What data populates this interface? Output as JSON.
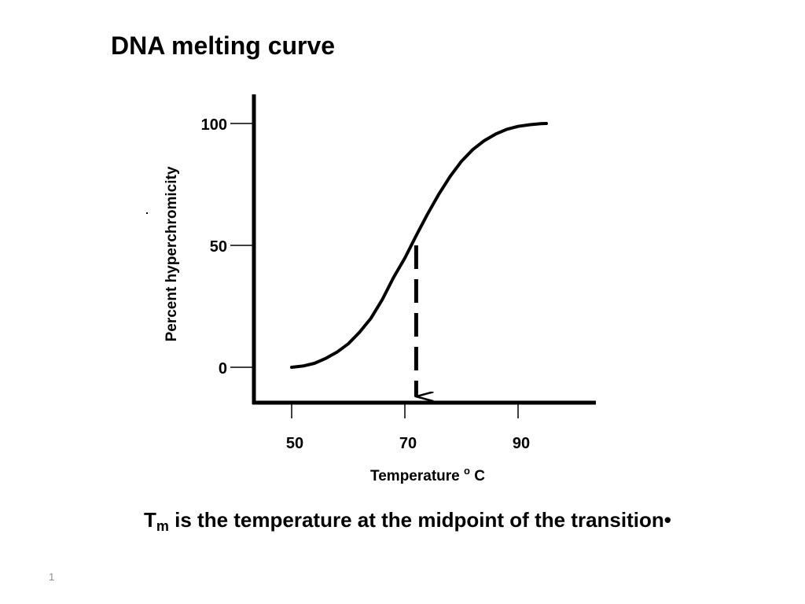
{
  "slide": {
    "title": "DNA melting curve",
    "caption_main": "T",
    "caption_sub": "m",
    "caption_rest": " is the temperature at the midpoint of the transition",
    "caption_bullet": "•",
    "slide_number": "1"
  },
  "chart_data": {
    "type": "line",
    "title": "",
    "xlabel": "Temperature",
    "xlabel_unit_sup": "o",
    "xlabel_unit": "C",
    "ylabel": "Percent hyperchromicity",
    "x_ticks": [
      50,
      70,
      90
    ],
    "y_ticks": [
      0,
      50,
      100
    ],
    "xlim": [
      44,
      105
    ],
    "ylim": [
      -13,
      112
    ],
    "grid": false,
    "series": [
      {
        "x": [
          50,
          52,
          54,
          56,
          58,
          60,
          62,
          64,
          66,
          68,
          70,
          72,
          74,
          76,
          78,
          80,
          82,
          84,
          86,
          88,
          90,
          92,
          94,
          95
        ],
        "y": [
          0,
          0.5,
          1.6,
          3.6,
          6.2,
          9.6,
          14.4,
          20.1,
          27.7,
          36.8,
          44.8,
          54.0,
          62.8,
          71.0,
          78.3,
          84.5,
          89.3,
          92.9,
          95.6,
          97.6,
          98.8,
          99.5,
          99.9,
          100
        ]
      }
    ],
    "annotations": [
      {
        "type": "dashed-arrow",
        "x": 72,
        "y_from": 50,
        "y_to": -12,
        "meaning": "Tm"
      }
    ],
    "line_color": "#000000"
  }
}
